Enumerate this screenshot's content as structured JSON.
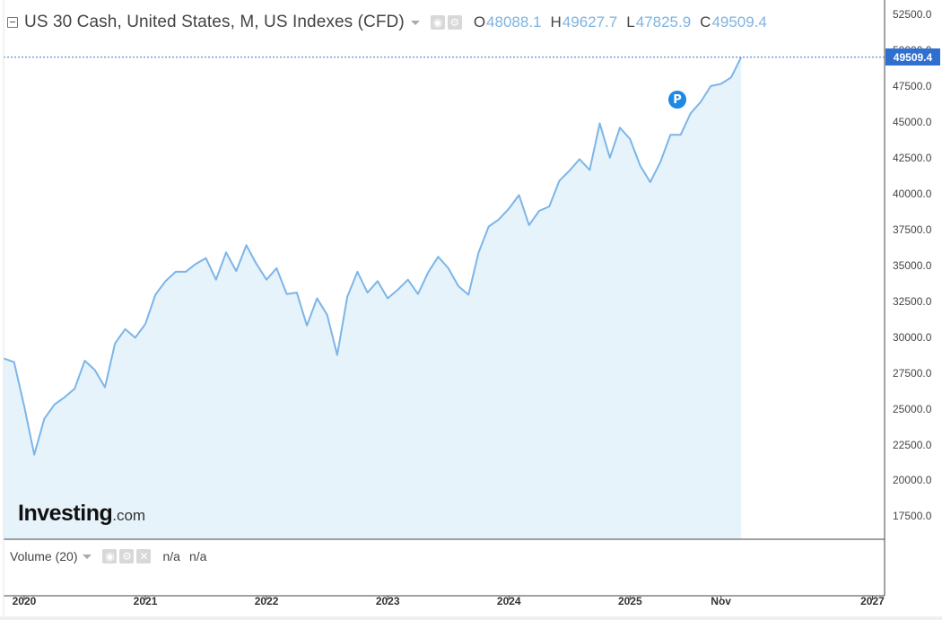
{
  "header": {
    "title": "US 30 Cash, United States, M, US Indexes (CFD)",
    "open_label": "O",
    "open_value": "48088.1",
    "high_label": "H",
    "high_value": "49627.7",
    "low_label": "L",
    "low_value": "47825.9",
    "close_label": "C",
    "close_value": "49509.4"
  },
  "last_price_label": "49509.4",
  "marker_label": "P",
  "logo": {
    "text": "Investing",
    "suffix": ".com"
  },
  "volume": {
    "label": "Volume (20)",
    "value1": "n/a",
    "value2": "n/a"
  },
  "colors": {
    "line": "#7cb5e8",
    "area": "#e6f3fb",
    "price_tag": "#2f6fd0",
    "crosshair": "#3a6fd6"
  },
  "icons": [
    "collapse-icon",
    "eye-icon",
    "gear-icon",
    "close-icon",
    "chevron-down-icon"
  ],
  "chart_data": {
    "type": "area",
    "title": "US 30 Cash, United States, M, US Indexes (CFD)",
    "xlabel": "",
    "ylabel": "",
    "ylim": [
      15900,
      53500
    ],
    "y_ticks": [
      "52500.0",
      "50000.0",
      "47500.0",
      "45000.0",
      "42500.0",
      "40000.0",
      "37500.0",
      "35000.0",
      "32500.0",
      "30000.0",
      "27500.0",
      "25000.0",
      "22500.0",
      "20000.0",
      "17500.0"
    ],
    "x_ticks": [
      {
        "label": "2020",
        "t": 2020.0
      },
      {
        "label": "2021",
        "t": 2021.0
      },
      {
        "label": "2022",
        "t": 2022.0
      },
      {
        "label": "2023",
        "t": 2023.0
      },
      {
        "label": "2024",
        "t": 2024.0
      },
      {
        "label": "2025",
        "t": 2025.0
      },
      {
        "label": "Nov",
        "t": 2025.75
      },
      {
        "label": "2027",
        "t": 2027.0
      }
    ],
    "x_start": 2019.83,
    "x_end": 2027.1,
    "series": [
      {
        "values": [
          28500,
          28250,
          25200,
          21800,
          24300,
          25300,
          25800,
          26400,
          28350,
          27700,
          26500,
          29550,
          30550,
          29950,
          30900,
          32950,
          33900,
          34550,
          34550,
          35100,
          35500,
          34000,
          35900,
          34600,
          36400,
          35100,
          34000,
          34800,
          33000,
          33100,
          30800,
          32700,
          31550,
          28750,
          32800,
          34550,
          33100,
          33900,
          32700,
          33300,
          34000,
          33000,
          34500,
          35600,
          34800,
          33550,
          32950,
          35900,
          37700,
          38200,
          38950,
          39900,
          37800,
          38800,
          39100,
          40900,
          41600,
          42400,
          41650,
          44900,
          42500,
          44600,
          43800,
          41950,
          40800,
          42200,
          44100,
          44100,
          45600,
          46400,
          47500,
          47650,
          48100,
          49509.4
        ]
      }
    ]
  }
}
